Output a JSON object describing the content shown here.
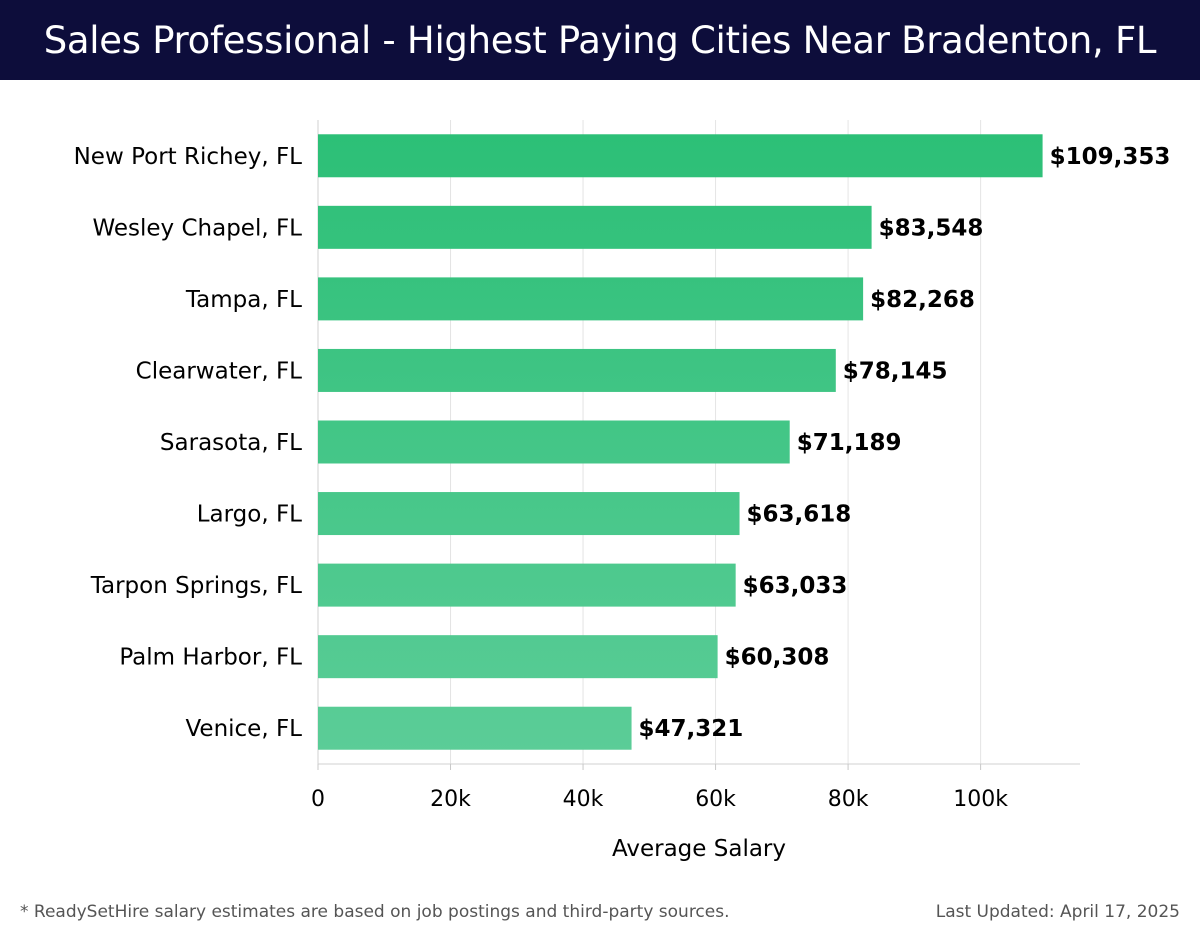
{
  "header": {
    "title": "Sales Professional - Highest Paying Cities Near Bradenton, FL"
  },
  "footer": {
    "note": "* ReadySetHire salary estimates are based on job postings and third-party sources.",
    "updated": "Last Updated: April 17, 2025"
  },
  "colors": {
    "header_bg": "#0d0d3b",
    "bar_top": "#2bbf76",
    "bar_bottom": "#5ccd98",
    "grid": "#e4e4e4"
  },
  "chart_data": {
    "type": "bar",
    "orientation": "horizontal",
    "title": "",
    "xlabel": "Average Salary",
    "ylabel": "",
    "xlim": [
      0,
      115000
    ],
    "x_ticks": [
      0,
      20000,
      40000,
      60000,
      80000,
      100000
    ],
    "x_tick_labels": [
      "0",
      "20k",
      "40k",
      "60k",
      "80k",
      "100k"
    ],
    "grid": true,
    "categories": [
      "New Port Richey, FL",
      "Wesley Chapel, FL",
      "Tampa, FL",
      "Clearwater, FL",
      "Sarasota, FL",
      "Largo, FL",
      "Tarpon Springs, FL",
      "Palm Harbor, FL",
      "Venice, FL"
    ],
    "values": [
      109353,
      83548,
      82268,
      78145,
      71189,
      63618,
      63033,
      60308,
      47321
    ],
    "data_labels": [
      "$109,353",
      "$83,548",
      "$82,268",
      "$78,145",
      "$71,189",
      "$63,618",
      "$63,033",
      "$60,308",
      "$47,321"
    ]
  }
}
